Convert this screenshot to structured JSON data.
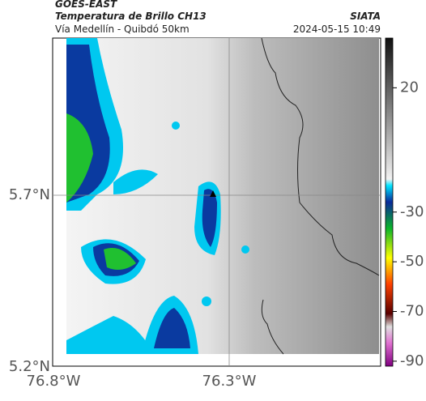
{
  "header": {
    "satellite": "GOES-EAST",
    "product": "Temperatura de Brillo CH13",
    "route": "Vía Medellín - Quibdó 50km",
    "source": "SIATA",
    "timestamp": "2024-05-15 10:49"
  },
  "map": {
    "lat_ticks": [
      "5.7°N",
      "5.2°N"
    ],
    "lon_ticks": [
      "76.8°W",
      "76.3°W"
    ]
  },
  "colorbar": {
    "limits": [
      40,
      -92
    ],
    "ticks": [
      20,
      -30,
      -50,
      -70,
      -90
    ]
  }
}
